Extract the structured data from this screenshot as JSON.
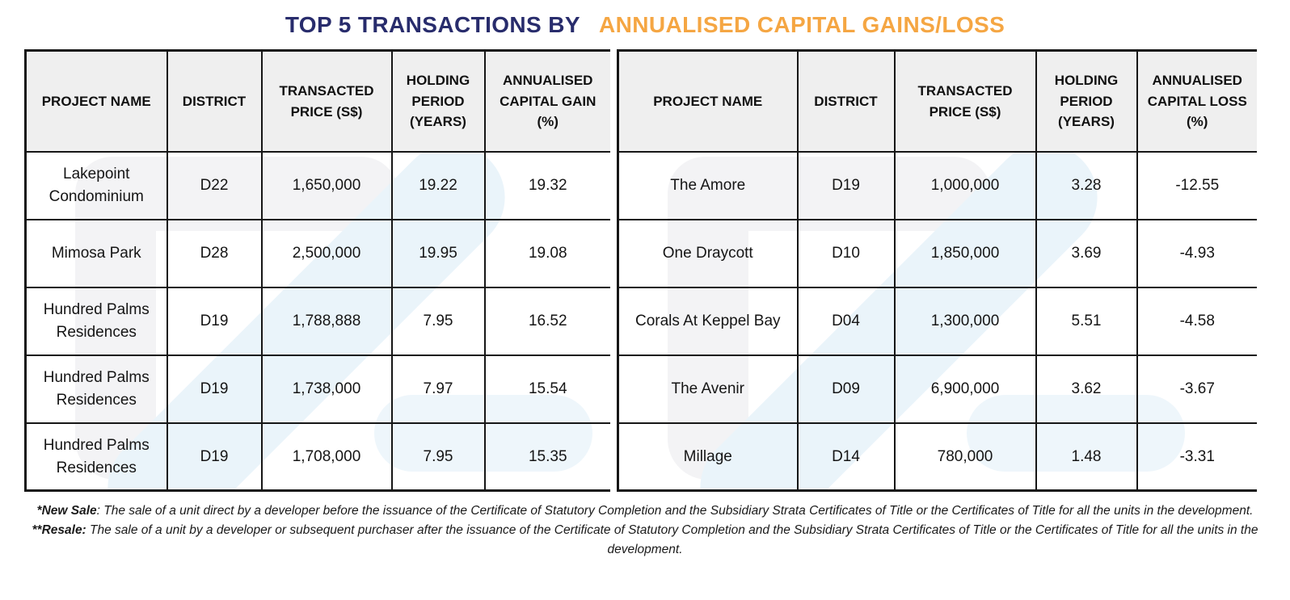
{
  "title": {
    "part1": "TOP 5 TRANSACTIONS BY",
    "part2": "ANNUALISED CAPITAL GAINS/LOSS"
  },
  "colors": {
    "title_navy": "#282c6c",
    "title_orange": "#f5a643",
    "table_border": "#161616",
    "header_background": "#efefef",
    "watermark_grey": "#f3f3f5",
    "watermark_blue": "#eaf4fa"
  },
  "tables": [
    {
      "name": "top5-annualised-capital-gains",
      "headers": [
        "PROJECT NAME",
        "DISTRICT",
        "TRANSACTED PRICE (S$)",
        "HOLDING PERIOD (YEARS)",
        "ANNUALISED CAPITAL GAIN (%)"
      ],
      "rows": [
        [
          "Lakepoint Condominium",
          "D22",
          "1,650,000",
          "19.22",
          "19.32"
        ],
        [
          "Mimosa Park",
          "D28",
          "2,500,000",
          "19.95",
          "19.08"
        ],
        [
          "Hundred Palms Residences",
          "D19",
          "1,788,888",
          "7.95",
          "16.52"
        ],
        [
          "Hundred Palms Residences",
          "D19",
          "1,738,000",
          "7.97",
          "15.54"
        ],
        [
          "Hundred Palms Residences",
          "D19",
          "1,708,000",
          "7.95",
          "15.35"
        ]
      ]
    },
    {
      "name": "top5-annualised-capital-loss",
      "headers": [
        "PROJECT NAME",
        "DISTRICT",
        "TRANSACTED PRICE (S$)",
        "HOLDING PERIOD (YEARS)",
        "ANNUALISED CAPITAL LOSS (%)"
      ],
      "rows": [
        [
          "The Amore",
          "D19",
          "1,000,000",
          "3.28",
          "-12.55"
        ],
        [
          "One Draycott",
          "D10",
          "1,850,000",
          "3.69",
          "-4.93"
        ],
        [
          "Corals At Keppel Bay",
          "D04",
          "1,300,000",
          "5.51",
          "-4.58"
        ],
        [
          "The Avenir",
          "D09",
          "6,900,000",
          "3.62",
          "-3.67"
        ],
        [
          "Millage",
          "D14",
          "780,000",
          "1.48",
          "-3.31"
        ]
      ]
    }
  ],
  "footnotes": [
    {
      "label": "*New Sale",
      "rest": ": The sale of a unit direct by a developer before the issuance of the Certificate of Statutory Completion and the Subsidiary Strata Certificates of Title or the Certificates of Title for all the units in the development."
    },
    {
      "label": "**Resale:",
      "rest": " The sale of a unit by a developer or subsequent purchaser after the issuance of the Certificate of Statutory Completion and the Subsidiary Strata Certificates of Title or the Certificates of Title for all the units in the development."
    }
  ]
}
